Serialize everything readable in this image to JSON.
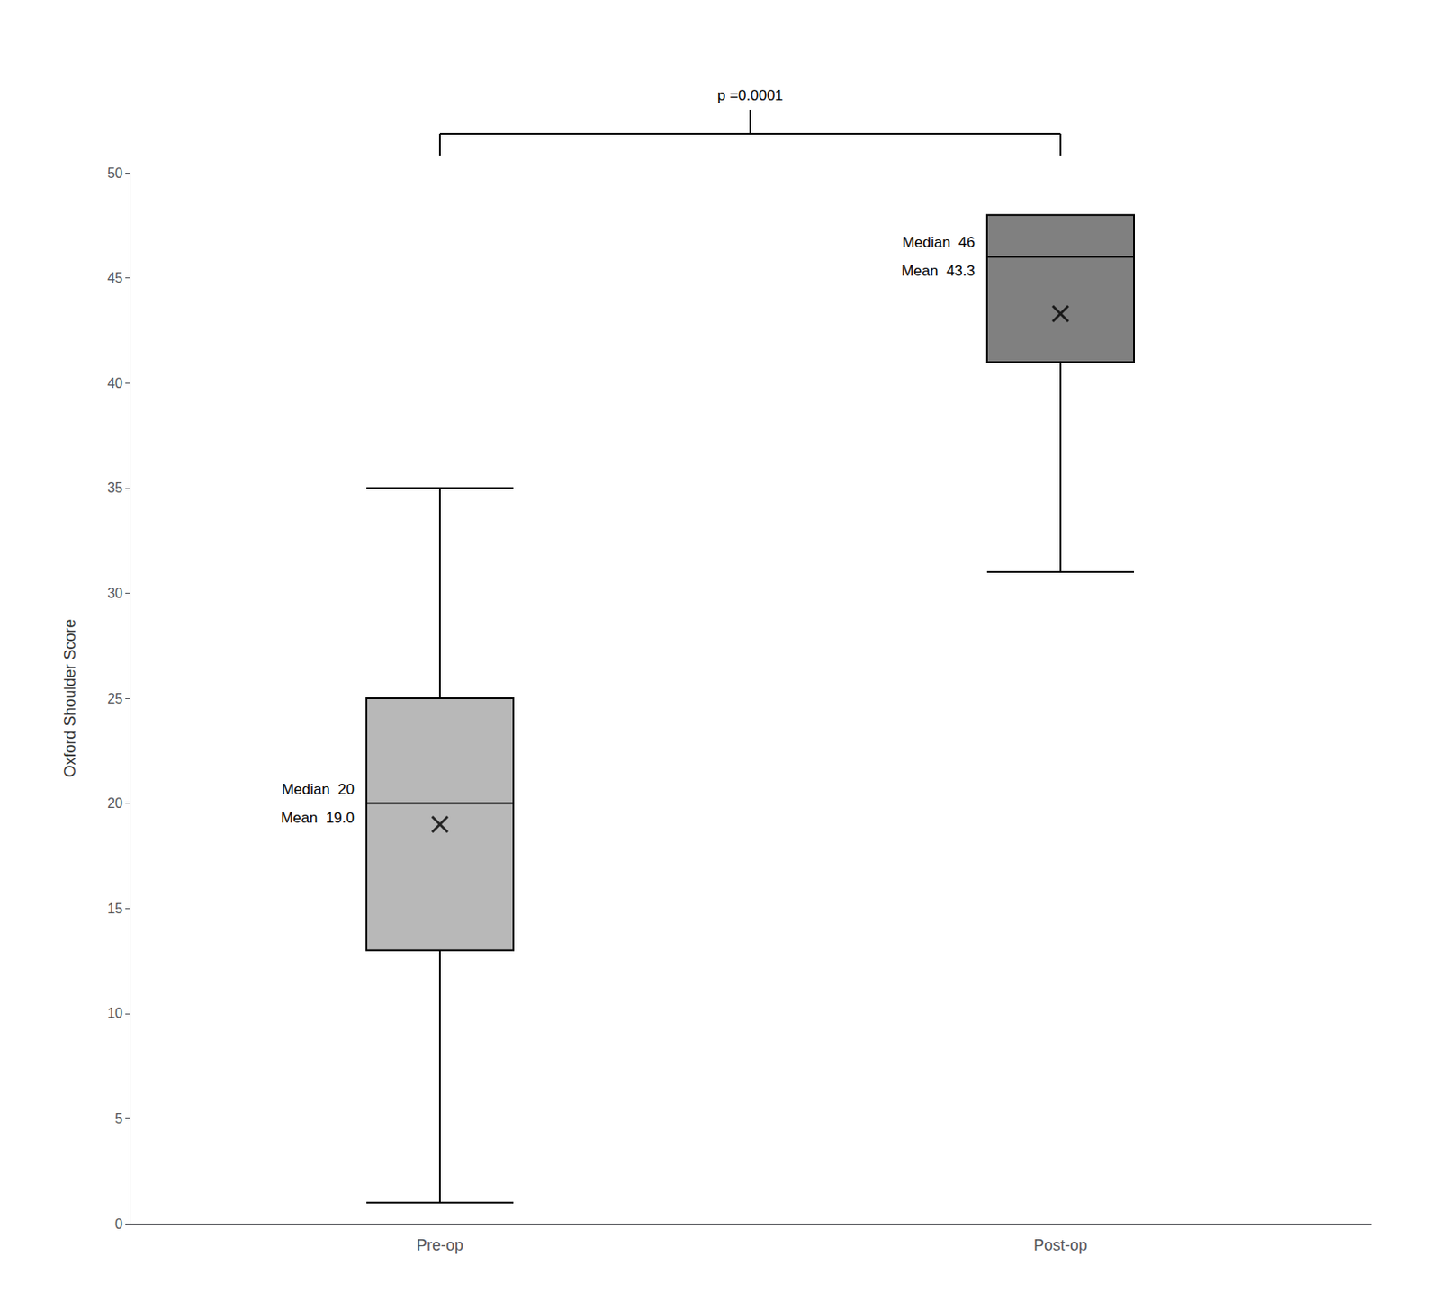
{
  "chart_data": {
    "type": "boxplot",
    "ylabel": "Oxford Shoulder Score",
    "categories": [
      "Pre-op",
      "Post-op"
    ],
    "boxes": [
      {
        "whisker_low": 1,
        "q1": 13,
        "median": 20,
        "q3": 25,
        "whisker_high": 35,
        "mean": 19.0,
        "median_label": "Median  20",
        "mean_label": "Mean  19.0"
      },
      {
        "whisker_low": 31,
        "q1": 41,
        "median": 46,
        "q3": 48,
        "whisker_high": 48,
        "mean": 43.3,
        "median_label": "Median  46",
        "mean_label": "Mean  43.3"
      }
    ],
    "colors": [
      "#b8b8b8",
      "#808080"
    ],
    "marker": "x",
    "annotation": "p =0.0001",
    "ylim": [
      0,
      50
    ],
    "yticks": [
      0,
      5,
      10,
      15,
      20,
      25,
      30,
      35,
      40,
      45,
      50
    ],
    "grid": false
  }
}
